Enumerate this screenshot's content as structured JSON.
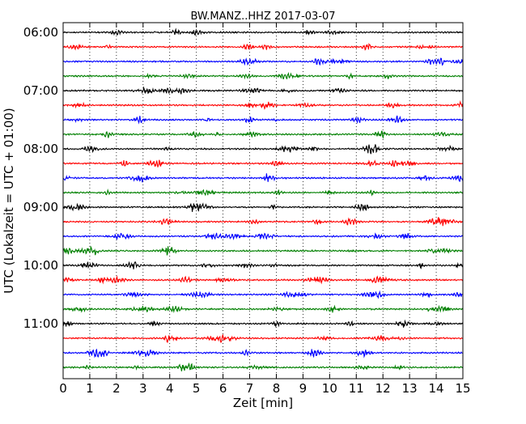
{
  "chart_data": {
    "type": "line",
    "title": "BW.MANZ..HHZ 2017-03-07",
    "xlabel": "Zeit  [min]",
    "ylabel": "UTC (Lokalzeit = UTC + 01:00)",
    "xlim": [
      0,
      15
    ],
    "x_ticks": [
      "0",
      "1",
      "2",
      "3",
      "4",
      "5",
      "6",
      "7",
      "8",
      "9",
      "10",
      "11",
      "12",
      "13",
      "14",
      "15"
    ],
    "y_tick_labels": [
      "06:00",
      "07:00",
      "08:00",
      "09:00",
      "10:00",
      "11:00"
    ],
    "trace_interval_minutes": 15,
    "trace_start_times": [
      "06:00",
      "06:15",
      "06:30",
      "06:45",
      "07:00",
      "07:15",
      "07:30",
      "07:45",
      "08:00",
      "08:15",
      "08:30",
      "08:45",
      "09:00",
      "09:15",
      "09:30",
      "09:45",
      "10:00",
      "10:15",
      "10:30",
      "10:45",
      "11:00",
      "11:15",
      "11:30",
      "11:45"
    ],
    "color_cycle": [
      "#000000",
      "#ff0000",
      "#0000ff",
      "#008000"
    ],
    "grid": "vertical dotted at each minute",
    "series_type": "seismogram traces (dayplot)"
  }
}
